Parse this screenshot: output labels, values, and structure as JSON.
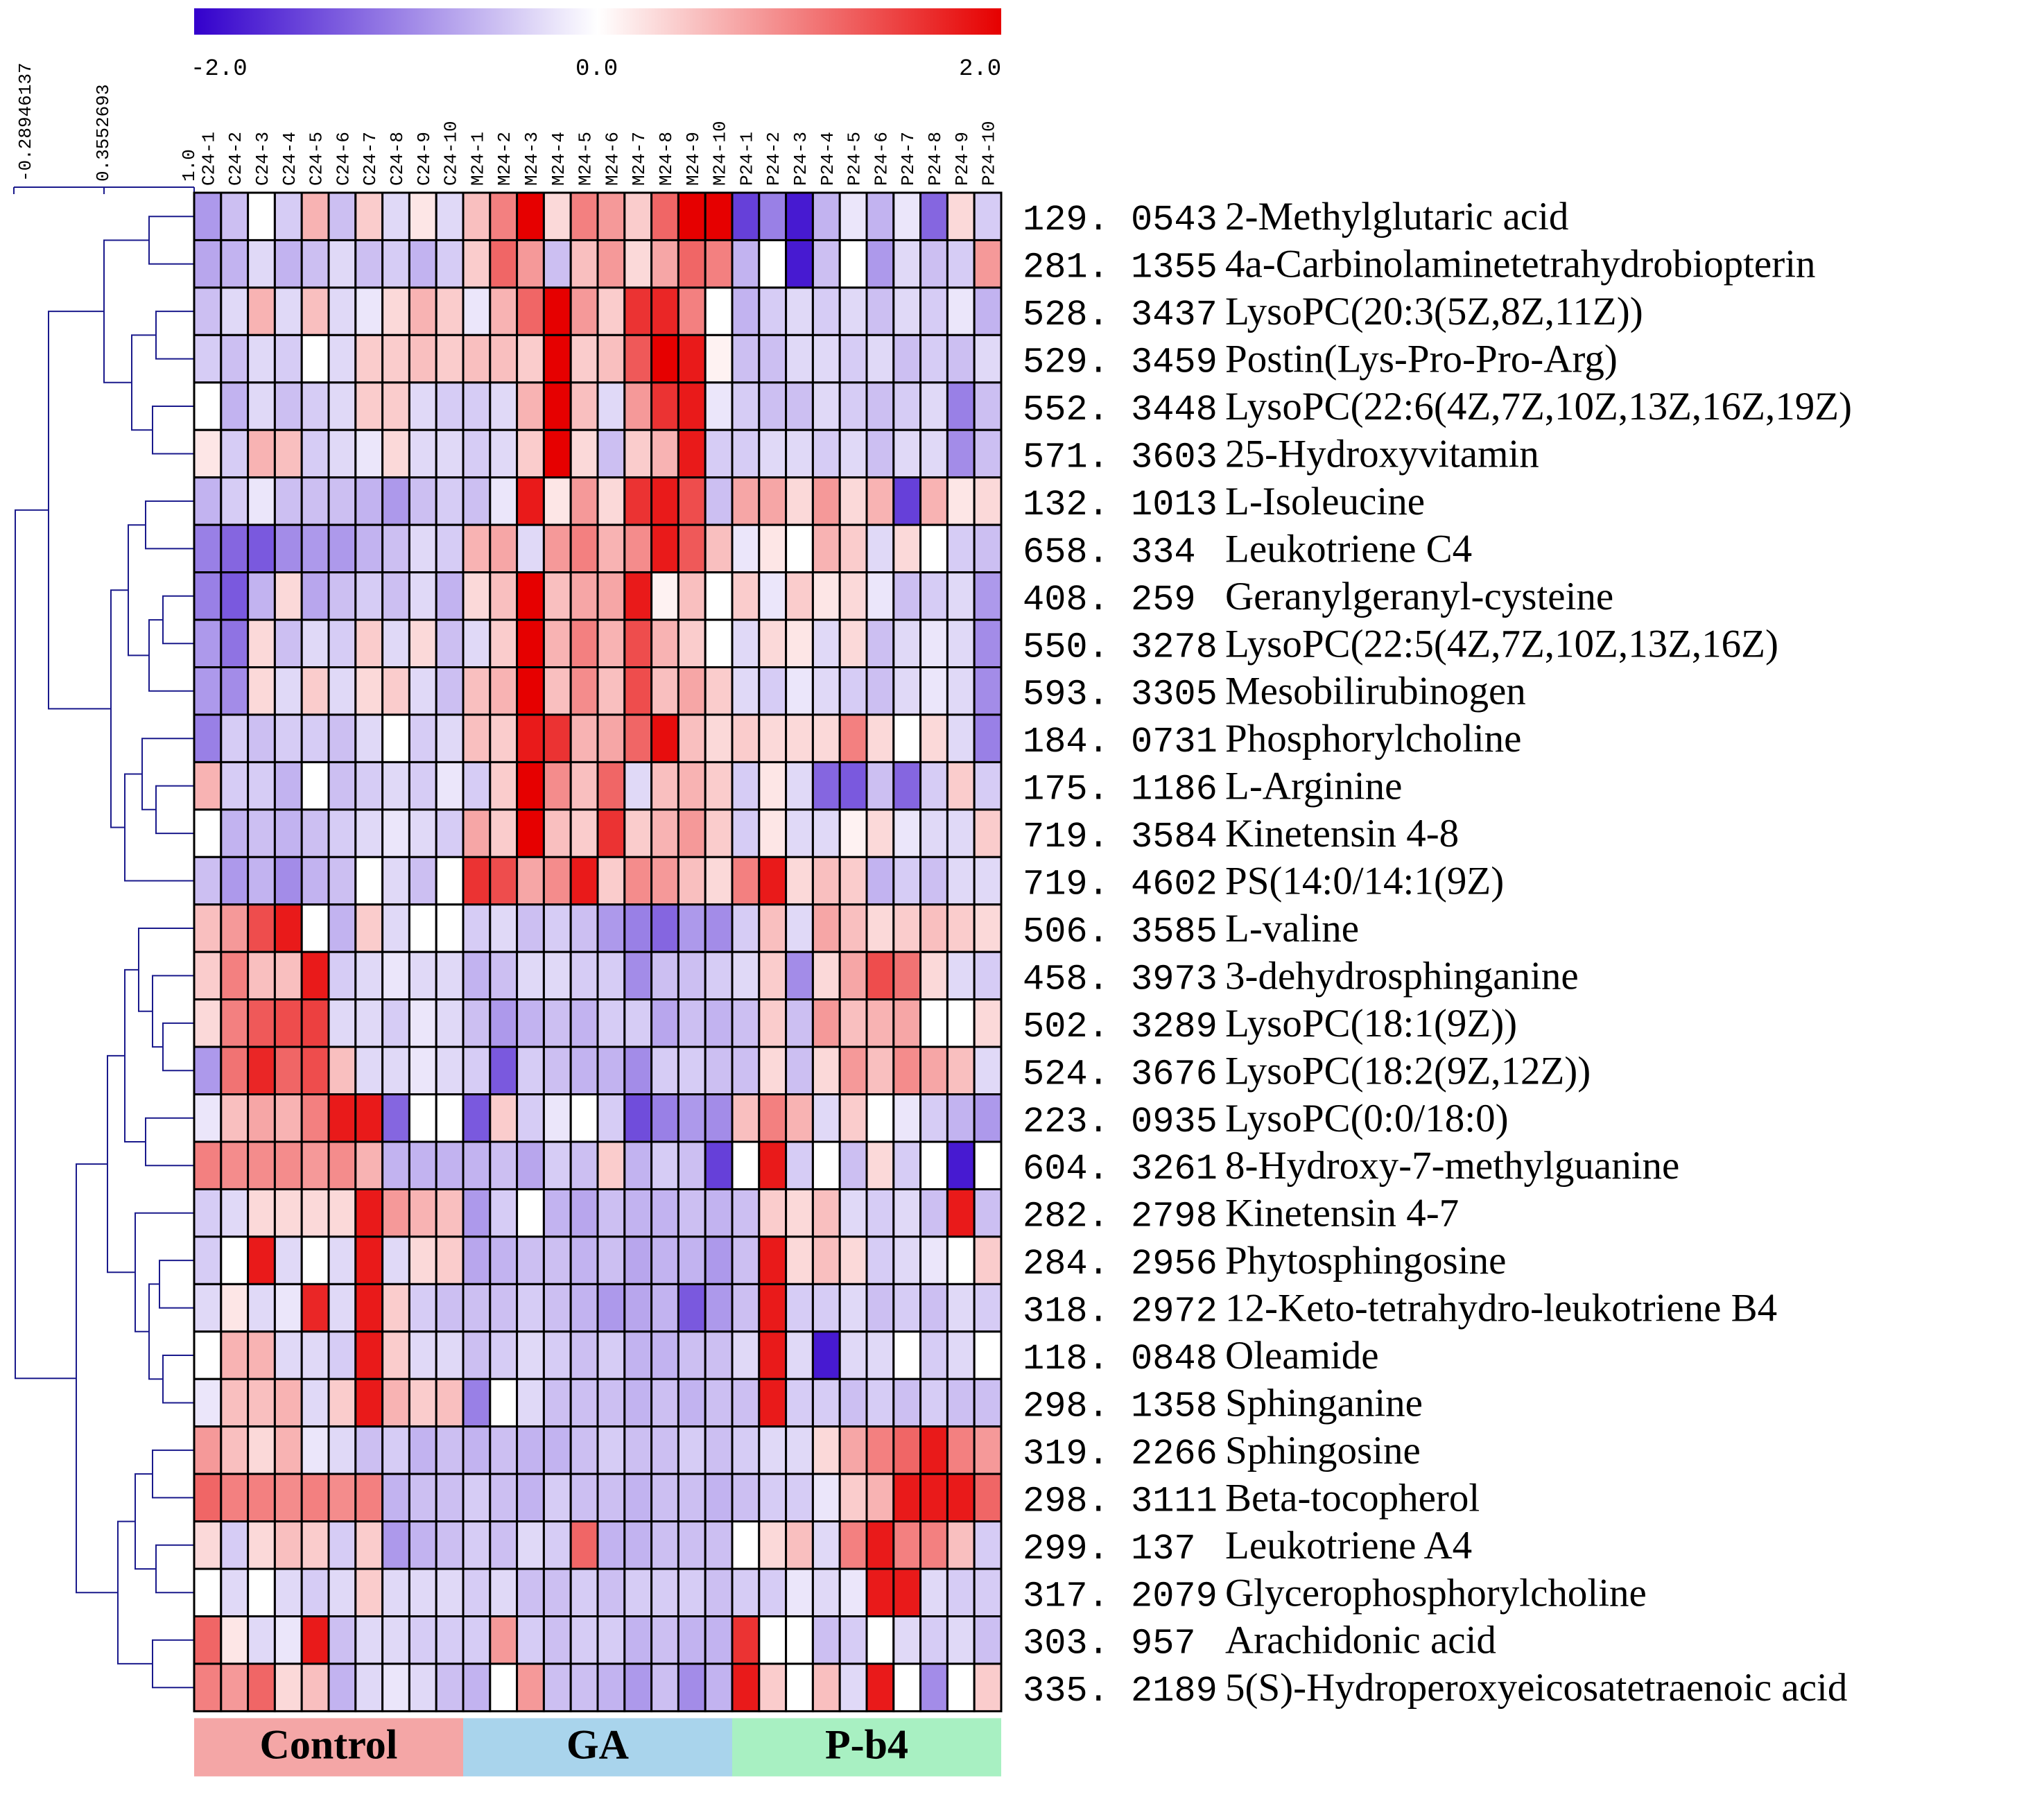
{
  "chart_data": {
    "type": "heatmap",
    "title": "",
    "color_scale": {
      "min_label": "-2.0",
      "mid_label": "0.0",
      "max_label": "2.0",
      "min": -2.0,
      "max": 2.0,
      "low_color": "#3300cc",
      "mid_color": "#ffffff",
      "high_color": "#e60000"
    },
    "dendrogram_scale": {
      "labels": [
        "-0.28946137",
        "0.3552693",
        "1.0"
      ],
      "line_color": "#1a1a8c"
    },
    "columns": [
      "C24-1",
      "C24-2",
      "C24-3",
      "C24-4",
      "C24-5",
      "C24-6",
      "C24-7",
      "C24-8",
      "C24-9",
      "C24-10",
      "M24-1",
      "M24-2",
      "M24-3",
      "M24-4",
      "M24-5",
      "M24-6",
      "M24-7",
      "M24-8",
      "M24-9",
      "M24-10",
      "P24-1",
      "P24-2",
      "P24-3",
      "P24-4",
      "P24-5",
      "P24-6",
      "P24-7",
      "P24-8",
      "P24-9",
      "P24-10"
    ],
    "groups": [
      {
        "name": "Control",
        "start": 0,
        "count": 10,
        "color": "#f4a6a6"
      },
      {
        "name": "GA",
        "start": 10,
        "count": 10,
        "color": "#a9d4ec"
      },
      {
        "name": "P-b4",
        "start": 20,
        "count": 10,
        "color": "#a8f0c2"
      }
    ],
    "rows": [
      {
        "mz": "129. 0543",
        "name": "2-Methylglutaric acid"
      },
      {
        "mz": "281. 1355",
        "name": "4a-Carbinolaminetetrahydrobiopterin"
      },
      {
        "mz": "528. 3437",
        "name": "LysoPC(20:3(5Z,8Z,11Z))"
      },
      {
        "mz": "529. 3459",
        "name": "Postin(Lys-Pro-Pro-Arg)"
      },
      {
        "mz": "552. 3448",
        "name": "LysoPC(22:6(4Z,7Z,10Z,13Z,16Z,19Z)"
      },
      {
        "mz": "571. 3603",
        "name": "25-Hydroxyvitamin"
      },
      {
        "mz": "132. 1013",
        "name": "L-Isoleucine"
      },
      {
        "mz": "658. 334",
        "name": "Leukotriene C4"
      },
      {
        "mz": "408. 259",
        "name": "Geranylgeranyl-cysteine"
      },
      {
        "mz": "550. 3278",
        "name": "LysoPC(22:5(4Z,7Z,10Z,13Z,16Z)"
      },
      {
        "mz": "593. 3305",
        "name": "Mesobilirubinogen"
      },
      {
        "mz": "184. 0731",
        "name": "Phosphorylcholine"
      },
      {
        "mz": "175. 1186",
        "name": "L-Arginine"
      },
      {
        "mz": "719. 3584",
        "name": "Kinetensin 4-8"
      },
      {
        "mz": "719. 4602",
        "name": "PS(14:0/14:1(9Z)"
      },
      {
        "mz": "506. 3585",
        "name": "L-valine"
      },
      {
        "mz": "458. 3973",
        "name": "3-dehydrosphinganine"
      },
      {
        "mz": "502. 3289",
        "name": "LysoPC(18:1(9Z))"
      },
      {
        "mz": "524. 3676",
        "name": "LysoPC(18:2(9Z,12Z))"
      },
      {
        "mz": "223. 0935",
        "name": "LysoPC(0:0/18:0)"
      },
      {
        "mz": "604. 3261",
        "name": "8-Hydroxy-7-methylguanine"
      },
      {
        "mz": "282. 2798",
        "name": "Kinetensin 4-7"
      },
      {
        "mz": "284. 2956",
        "name": "Phytosphingosine"
      },
      {
        "mz": "318. 2972",
        "name": "12-Keto-tetrahydro-leukotriene B4"
      },
      {
        "mz": "118. 0848",
        "name": "Oleamide"
      },
      {
        "mz": "298. 1358",
        "name": "Sphinganine"
      },
      {
        "mz": "319. 2266",
        "name": "Sphingosine"
      },
      {
        "mz": "298. 3111",
        "name": "Beta-tocopherol"
      },
      {
        "mz": "299. 137",
        "name": "Leukotriene A4"
      },
      {
        "mz": "317. 2079",
        "name": "Glycerophosphorylcholine"
      },
      {
        "mz": "303. 957",
        "name": "Arachidonic acid"
      },
      {
        "mz": "335. 2189",
        "name": "5(S)-Hydroperoxyeicosatetraenoic acid"
      }
    ],
    "values": [
      [
        -0.8,
        -0.5,
        0.0,
        -0.4,
        0.6,
        -0.5,
        0.4,
        -0.3,
        0.2,
        -0.3,
        0.5,
        1.0,
        2.0,
        0.3,
        1.0,
        0.8,
        0.4,
        1.2,
        2.0,
        2.0,
        -1.5,
        -1.0,
        -1.8,
        -0.6,
        -0.2,
        -0.6,
        -0.2,
        -1.2,
        0.3,
        -0.4
      ],
      [
        -0.7,
        -0.6,
        -0.3,
        -0.6,
        -0.5,
        -0.3,
        -0.5,
        -0.4,
        -0.6,
        -0.4,
        0.4,
        1.2,
        0.8,
        -0.5,
        0.5,
        0.8,
        0.3,
        0.7,
        1.2,
        1.0,
        -0.6,
        0.0,
        -1.8,
        -0.5,
        0.0,
        -0.8,
        -0.3,
        -0.5,
        -0.4,
        0.8
      ],
      [
        -0.5,
        -0.3,
        0.6,
        -0.3,
        0.5,
        -0.3,
        -0.2,
        0.3,
        0.6,
        0.4,
        -0.2,
        0.6,
        1.2,
        2.0,
        0.8,
        0.4,
        1.6,
        1.7,
        1.0,
        0.0,
        -0.6,
        -0.4,
        -0.3,
        -0.4,
        -0.3,
        -0.5,
        -0.3,
        -0.4,
        -0.2,
        -0.6
      ],
      [
        -0.4,
        -0.5,
        -0.3,
        -0.4,
        0.0,
        -0.3,
        0.4,
        0.4,
        0.5,
        0.4,
        0.5,
        0.5,
        0.4,
        2.0,
        0.4,
        0.5,
        1.3,
        2.0,
        1.8,
        0.1,
        -0.5,
        -0.5,
        -0.3,
        -0.3,
        -0.4,
        -0.3,
        -0.5,
        -0.4,
        -0.5,
        -0.3
      ],
      [
        0.0,
        -0.6,
        -0.3,
        -0.5,
        -0.4,
        -0.3,
        0.4,
        0.4,
        -0.3,
        -0.4,
        -0.4,
        -0.3,
        0.6,
        2.0,
        0.5,
        -0.3,
        0.8,
        1.6,
        1.8,
        -0.2,
        -0.4,
        -0.5,
        -0.5,
        -0.3,
        -0.4,
        -0.5,
        -0.4,
        -0.3,
        -1.0,
        -0.5
      ],
      [
        0.2,
        -0.4,
        0.6,
        0.5,
        -0.4,
        -0.3,
        -0.2,
        0.3,
        -0.3,
        -0.3,
        -0.4,
        -0.3,
        0.4,
        2.0,
        0.3,
        -0.5,
        0.4,
        0.6,
        1.8,
        -0.4,
        -0.4,
        -0.3,
        -0.3,
        -0.4,
        -0.3,
        -0.5,
        -0.3,
        -0.3,
        -0.9,
        -0.5
      ],
      [
        -0.6,
        -0.4,
        -0.2,
        -0.5,
        -0.5,
        -0.5,
        -0.6,
        -0.8,
        -0.5,
        -0.4,
        -0.5,
        -0.2,
        1.8,
        0.2,
        0.8,
        0.3,
        1.6,
        1.8,
        1.4,
        -0.5,
        0.7,
        0.7,
        0.3,
        0.8,
        0.3,
        0.6,
        -1.5,
        0.6,
        0.2,
        0.3
      ],
      [
        -1.0,
        -1.2,
        -1.3,
        -0.9,
        -0.8,
        -0.8,
        -0.6,
        -0.5,
        -0.3,
        -0.4,
        0.6,
        0.7,
        -0.3,
        0.8,
        1.0,
        0.6,
        0.9,
        1.8,
        1.3,
        0.5,
        -0.2,
        0.2,
        0.0,
        0.6,
        0.4,
        -0.3,
        0.3,
        0.0,
        -0.4,
        -0.5
      ],
      [
        -1.0,
        -1.3,
        -0.6,
        0.3,
        -0.7,
        -0.5,
        -0.4,
        -0.5,
        -0.3,
        -0.6,
        0.3,
        0.5,
        2.0,
        0.5,
        0.7,
        0.7,
        1.8,
        0.1,
        0.5,
        0.0,
        0.4,
        -0.2,
        0.4,
        0.2,
        0.3,
        -0.2,
        -0.5,
        -0.4,
        -0.3,
        -0.8
      ],
      [
        -0.8,
        -1.1,
        0.3,
        -0.5,
        -0.3,
        -0.4,
        0.4,
        -0.3,
        0.3,
        -0.5,
        -0.3,
        0.4,
        2.0,
        0.6,
        1.0,
        0.6,
        1.4,
        0.6,
        0.4,
        0.0,
        -0.3,
        0.3,
        0.2,
        -0.3,
        0.3,
        -0.5,
        -0.3,
        -0.2,
        -0.3,
        -0.9
      ],
      [
        -0.8,
        -0.9,
        0.3,
        -0.3,
        0.4,
        -0.3,
        0.3,
        0.4,
        -0.3,
        -0.5,
        0.5,
        0.6,
        2.0,
        0.5,
        0.9,
        0.5,
        1.4,
        0.5,
        0.7,
        0.4,
        -0.3,
        -0.4,
        -0.2,
        -0.3,
        -0.4,
        -0.5,
        -0.3,
        -0.2,
        -0.3,
        -0.9
      ],
      [
        -1.0,
        -0.4,
        -0.5,
        -0.4,
        -0.4,
        -0.5,
        -0.3,
        0.0,
        -0.4,
        -0.3,
        0.5,
        0.4,
        1.8,
        1.6,
        0.6,
        0.7,
        1.2,
        1.9,
        0.5,
        0.3,
        0.4,
        0.3,
        0.3,
        0.3,
        1.0,
        0.3,
        0.0,
        0.3,
        -0.3,
        -1.0
      ],
      [
        0.6,
        -0.4,
        -0.4,
        -0.6,
        0.0,
        -0.5,
        -0.4,
        -0.3,
        -0.4,
        -0.2,
        -0.4,
        0.4,
        2.0,
        0.9,
        0.5,
        1.2,
        -0.3,
        0.5,
        0.6,
        0.4,
        -0.4,
        0.2,
        -0.3,
        -1.2,
        -1.3,
        -0.5,
        -1.2,
        -0.4,
        0.4,
        -0.4
      ],
      [
        0.0,
        -0.6,
        -0.5,
        -0.6,
        -0.5,
        -0.4,
        -0.3,
        -0.2,
        -0.3,
        -0.4,
        0.7,
        0.4,
        2.0,
        0.5,
        0.4,
        1.6,
        0.4,
        0.6,
        0.8,
        0.4,
        -0.4,
        0.2,
        -0.3,
        -0.3,
        0.1,
        0.3,
        -0.2,
        -0.3,
        -0.3,
        0.4
      ],
      [
        -0.5,
        -0.8,
        -0.6,
        -0.9,
        -0.6,
        -0.5,
        0.0,
        -0.3,
        -0.5,
        0.0,
        1.6,
        1.4,
        0.7,
        0.9,
        1.8,
        0.4,
        0.9,
        0.8,
        0.5,
        0.3,
        1.0,
        1.8,
        0.3,
        0.5,
        0.4,
        -0.6,
        -0.4,
        -0.5,
        -0.3,
        -0.3
      ],
      [
        0.5,
        0.8,
        1.4,
        1.8,
        0.0,
        -0.6,
        0.4,
        -0.3,
        0.0,
        0.0,
        -0.4,
        -0.3,
        -0.5,
        -0.4,
        -0.5,
        -0.8,
        -1.0,
        -1.2,
        -0.8,
        -0.9,
        -0.4,
        0.5,
        -0.3,
        0.7,
        0.5,
        0.3,
        0.4,
        0.5,
        0.4,
        0.3
      ],
      [
        0.4,
        1.0,
        0.5,
        0.5,
        1.8,
        -0.4,
        -0.3,
        -0.2,
        -0.3,
        -0.3,
        -0.6,
        -0.5,
        -0.3,
        -0.3,
        -0.4,
        -0.4,
        -0.9,
        -0.5,
        -0.5,
        -0.4,
        -0.3,
        0.4,
        -0.9,
        0.3,
        0.7,
        1.4,
        1.1,
        0.3,
        -0.3,
        -0.4
      ],
      [
        0.3,
        1.0,
        1.3,
        1.4,
        1.5,
        -0.3,
        -0.3,
        -0.4,
        -0.2,
        -0.3,
        -0.5,
        -0.8,
        -0.6,
        -0.5,
        -0.6,
        -0.4,
        -0.4,
        -0.7,
        -0.5,
        -0.6,
        -0.5,
        0.4,
        -0.5,
        0.8,
        0.5,
        0.6,
        0.7,
        0.0,
        0.0,
        0.3
      ],
      [
        -0.8,
        1.1,
        1.7,
        1.2,
        1.4,
        0.5,
        -0.3,
        -0.3,
        -0.2,
        -0.3,
        -0.4,
        -1.3,
        -0.4,
        -0.5,
        -0.6,
        -0.6,
        -0.9,
        -0.4,
        -0.4,
        -0.5,
        -0.5,
        0.3,
        -0.5,
        0.3,
        0.8,
        0.5,
        0.9,
        0.7,
        0.5,
        -0.3
      ],
      [
        -0.2,
        0.5,
        0.7,
        0.6,
        1.0,
        1.8,
        1.8,
        -1.2,
        0.0,
        0.0,
        -1.3,
        0.4,
        -0.4,
        -0.2,
        0.0,
        -0.4,
        -1.4,
        -1.0,
        -0.8,
        -0.9,
        0.5,
        1.0,
        0.6,
        -0.3,
        0.4,
        0.0,
        -0.2,
        -0.4,
        -0.6,
        -0.8
      ],
      [
        1.0,
        0.9,
        0.9,
        0.9,
        0.8,
        0.9,
        0.6,
        -0.6,
        -0.6,
        -0.6,
        -0.6,
        -0.5,
        -0.7,
        -0.4,
        -0.5,
        0.4,
        -0.6,
        -0.4,
        -0.5,
        -1.5,
        0.0,
        1.8,
        -0.4,
        0.0,
        -0.5,
        0.3,
        -0.4,
        0.0,
        -1.8,
        0.0
      ],
      [
        -0.4,
        -0.3,
        0.3,
        0.3,
        0.3,
        0.3,
        1.8,
        0.8,
        0.6,
        0.5,
        -0.8,
        -0.4,
        0.0,
        -0.6,
        -0.7,
        -0.5,
        -0.6,
        -0.6,
        -0.5,
        -0.6,
        -0.5,
        0.4,
        0.3,
        0.5,
        -0.3,
        -0.4,
        -0.3,
        -0.5,
        1.8,
        -0.5
      ],
      [
        -0.4,
        0.0,
        1.8,
        -0.3,
        0.0,
        -0.3,
        1.8,
        -0.3,
        0.3,
        0.4,
        -0.7,
        -0.6,
        -0.5,
        -0.5,
        -0.6,
        -0.5,
        -0.7,
        -0.6,
        -0.6,
        -0.8,
        -0.5,
        1.8,
        0.3,
        0.5,
        0.3,
        -0.4,
        -0.3,
        -0.2,
        0.0,
        0.4
      ],
      [
        -0.3,
        0.2,
        -0.3,
        -0.2,
        1.7,
        -0.3,
        1.8,
        0.4,
        -0.4,
        -0.5,
        -0.5,
        -0.5,
        -0.4,
        -0.5,
        -0.6,
        -0.8,
        -0.7,
        -0.6,
        -1.3,
        -0.8,
        -0.5,
        1.8,
        -0.4,
        -0.4,
        -0.3,
        -0.5,
        -0.4,
        -0.5,
        -0.3,
        -0.4
      ],
      [
        0.0,
        0.6,
        0.6,
        -0.3,
        -0.3,
        -0.4,
        1.8,
        0.4,
        -0.3,
        -0.3,
        -0.5,
        -0.4,
        -0.3,
        -0.4,
        -0.5,
        -0.4,
        -0.6,
        -0.6,
        -0.5,
        -0.5,
        -0.3,
        1.8,
        -0.3,
        -1.8,
        -0.3,
        -0.3,
        0.0,
        -0.4,
        -0.3,
        0.0
      ],
      [
        -0.2,
        0.5,
        0.5,
        0.6,
        -0.3,
        0.4,
        1.8,
        0.6,
        0.4,
        0.5,
        -1.0,
        0.0,
        -0.3,
        -0.5,
        -0.5,
        -0.5,
        -0.6,
        -0.5,
        -0.6,
        -0.5,
        -0.5,
        1.8,
        -0.4,
        -0.4,
        -0.5,
        -0.4,
        -0.5,
        -0.4,
        -0.5,
        -0.5
      ],
      [
        0.8,
        0.5,
        0.3,
        0.6,
        -0.2,
        -0.3,
        -0.5,
        -0.4,
        -0.6,
        -0.5,
        -0.6,
        -0.5,
        -0.6,
        -0.6,
        -0.5,
        -0.4,
        -0.5,
        -0.5,
        -0.4,
        -0.5,
        -0.4,
        -0.3,
        -0.3,
        0.3,
        0.7,
        1.0,
        1.2,
        1.8,
        1.0,
        0.8
      ],
      [
        1.2,
        1.0,
        1.0,
        0.9,
        1.0,
        0.9,
        1.0,
        -0.6,
        -0.5,
        -0.5,
        -0.4,
        -0.5,
        -0.6,
        -0.4,
        -0.5,
        -0.5,
        -0.6,
        -0.5,
        -0.5,
        -0.6,
        -0.5,
        -0.4,
        -0.4,
        -0.2,
        0.4,
        0.6,
        1.8,
        1.8,
        1.8,
        1.2
      ],
      [
        0.3,
        -0.4,
        0.3,
        0.5,
        0.4,
        -0.4,
        0.4,
        -0.8,
        -0.6,
        -0.5,
        -0.4,
        -0.5,
        -0.3,
        -0.4,
        1.2,
        -0.6,
        -0.6,
        -0.5,
        -0.5,
        -0.5,
        0.0,
        0.3,
        0.5,
        -0.3,
        1.0,
        1.8,
        1.0,
        1.0,
        0.5,
        -0.4
      ],
      [
        0.0,
        -0.3,
        0.0,
        -0.3,
        -0.4,
        -0.3,
        0.4,
        -0.3,
        -0.3,
        -0.3,
        -0.4,
        -0.3,
        -0.5,
        -0.5,
        -0.4,
        -0.5,
        -0.4,
        -0.4,
        -0.4,
        -0.5,
        -0.4,
        -0.4,
        -0.2,
        -0.3,
        -0.2,
        1.8,
        1.8,
        -0.3,
        -0.4,
        -0.4
      ],
      [
        1.2,
        0.2,
        -0.3,
        -0.2,
        1.8,
        -0.5,
        -0.3,
        -0.3,
        -0.4,
        -0.4,
        -0.4,
        0.8,
        -0.4,
        -0.5,
        -0.4,
        -0.4,
        -0.6,
        -0.5,
        -0.6,
        -0.6,
        1.6,
        0.0,
        0.0,
        -0.5,
        -0.4,
        0.0,
        -0.3,
        -0.4,
        -0.3,
        -0.5
      ],
      [
        1.0,
        0.8,
        1.2,
        0.3,
        0.5,
        -0.6,
        -0.3,
        -0.2,
        -0.3,
        -0.5,
        -0.6,
        0.0,
        0.8,
        -0.5,
        -0.5,
        -0.6,
        -0.8,
        -0.5,
        -0.9,
        -0.6,
        1.8,
        0.4,
        0.0,
        0.5,
        -0.3,
        1.8,
        0.0,
        -0.9,
        0.0,
        0.4
      ]
    ]
  }
}
